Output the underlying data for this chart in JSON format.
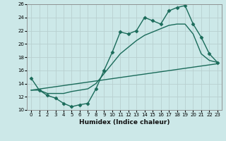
{
  "xlabel": "Humidex (Indice chaleur)",
  "bg_color": "#cce8e8",
  "grid_color": "#b8d0d0",
  "line_color": "#1a6b5a",
  "xlim": [
    -0.5,
    23.5
  ],
  "ylim": [
    10,
    26
  ],
  "xticks": [
    0,
    1,
    2,
    3,
    4,
    5,
    6,
    7,
    8,
    9,
    10,
    11,
    12,
    13,
    14,
    15,
    16,
    17,
    18,
    19,
    20,
    21,
    22,
    23
  ],
  "yticks": [
    10,
    12,
    14,
    16,
    18,
    20,
    22,
    24,
    26
  ],
  "series1_x": [
    0,
    1,
    2,
    3,
    4,
    5,
    6,
    7,
    8,
    9,
    10,
    11,
    12,
    13,
    14,
    15,
    16,
    17,
    18,
    19,
    20,
    21,
    22,
    23
  ],
  "series1_y": [
    14.8,
    13.0,
    12.2,
    11.8,
    11.0,
    10.5,
    10.8,
    11.0,
    13.2,
    16.0,
    18.7,
    21.8,
    21.5,
    22.0,
    24.0,
    23.5,
    23.0,
    25.0,
    25.5,
    25.8,
    23.0,
    21.0,
    18.5,
    17.2
  ],
  "series2_x": [
    0,
    1,
    2,
    3,
    4,
    5,
    6,
    7,
    8,
    9,
    10,
    11,
    12,
    13,
    14,
    15,
    16,
    17,
    18,
    19,
    20,
    21,
    22,
    23
  ],
  "series2_y": [
    13.0,
    13.0,
    12.5,
    12.5,
    12.5,
    12.8,
    13.0,
    13.2,
    14.0,
    15.5,
    17.0,
    18.5,
    19.5,
    20.5,
    21.3,
    21.8,
    22.3,
    22.8,
    23.0,
    23.0,
    21.5,
    18.5,
    17.5,
    17.2
  ],
  "series3_x": [
    0,
    23
  ],
  "series3_y": [
    13.0,
    17.0
  ],
  "marker_size": 2.5,
  "linewidth": 1.0
}
